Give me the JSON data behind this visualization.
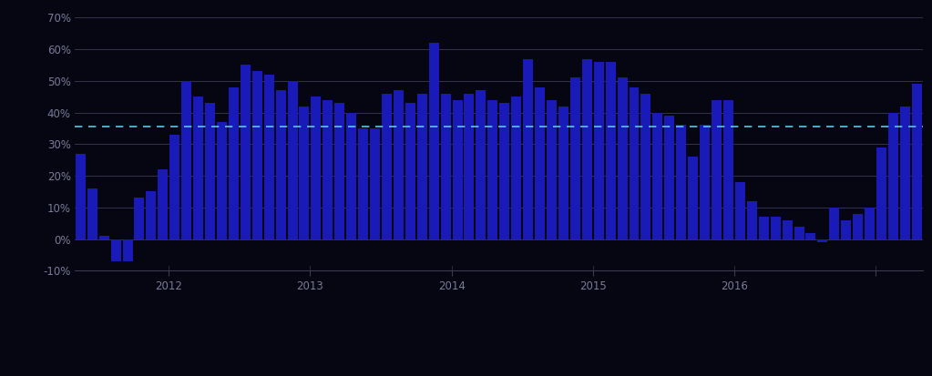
{
  "bar_values": [
    0.27,
    0.16,
    0.01,
    -0.07,
    -0.07,
    0.13,
    0.15,
    0.22,
    0.33,
    0.5,
    0.45,
    0.43,
    0.37,
    0.48,
    0.55,
    0.53,
    0.52,
    0.47,
    0.5,
    0.42,
    0.45,
    0.44,
    0.43,
    0.4,
    0.35,
    0.35,
    0.46,
    0.47,
    0.43,
    0.46,
    0.62,
    0.46,
    0.44,
    0.46,
    0.47,
    0.44,
    0.43,
    0.45,
    0.57,
    0.48,
    0.44,
    0.42,
    0.51,
    0.57,
    0.56,
    0.56,
    0.51,
    0.48,
    0.46,
    0.4,
    0.39,
    0.36,
    0.26,
    0.36,
    0.44,
    0.44,
    0.18,
    0.12,
    0.07,
    0.07,
    0.06,
    0.04,
    0.02,
    -0.01,
    0.1,
    0.06,
    0.08,
    0.1,
    0.29,
    0.4,
    0.42,
    0.49
  ],
  "dashed_line_value": 0.355,
  "bar_color": "#1a1ab8",
  "dashed_line_color": "#5bc8e8",
  "background_color": "#060612",
  "grid_color": "#3a3a52",
  "text_color": "#7a7a9a",
  "ylim": [
    -0.1,
    0.72
  ],
  "yticks": [
    -0.1,
    0.0,
    0.1,
    0.2,
    0.3,
    0.4,
    0.5,
    0.6,
    0.7
  ],
  "ytick_labels": [
    "-10%",
    "0%",
    "10%",
    "20%",
    "30%",
    "40%",
    "50%",
    "60%",
    "70%"
  ],
  "x_tick_positions": [
    7.5,
    19.5,
    31.5,
    43.5,
    55.5,
    67.5
  ],
  "x_tick_labels": [
    "2012",
    "2013",
    "2014",
    "2015",
    "2016",
    ""
  ],
  "figsize": [
    10.23,
    4.13
  ],
  "dpi": 100
}
